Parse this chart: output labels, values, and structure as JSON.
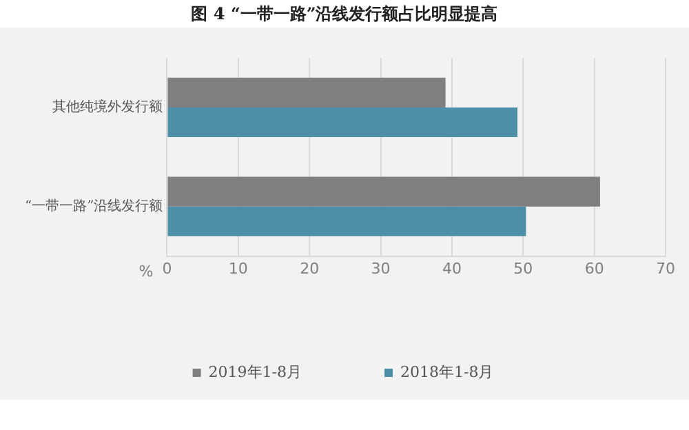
{
  "chart_data": {
    "type": "bar",
    "orientation": "horizontal",
    "title": "图 4 “一带一路”沿线发行额占比明显提高",
    "xlabel": "%",
    "categories": [
      "其他纯境外发行额",
      "“一带一路”沿线发行额"
    ],
    "series": [
      {
        "name": "2019年1-8月",
        "color": "#7f7f7f",
        "values": [
          39.1,
          60.8
        ]
      },
      {
        "name": "2018年1-8月",
        "color": "#4e8fa8",
        "values": [
          49.2,
          50.4
        ]
      }
    ],
    "xlim": [
      0,
      70
    ],
    "xticks": [
      0,
      10,
      20,
      30,
      40,
      50,
      60,
      70
    ],
    "grid": "x",
    "legend": "bottom"
  }
}
